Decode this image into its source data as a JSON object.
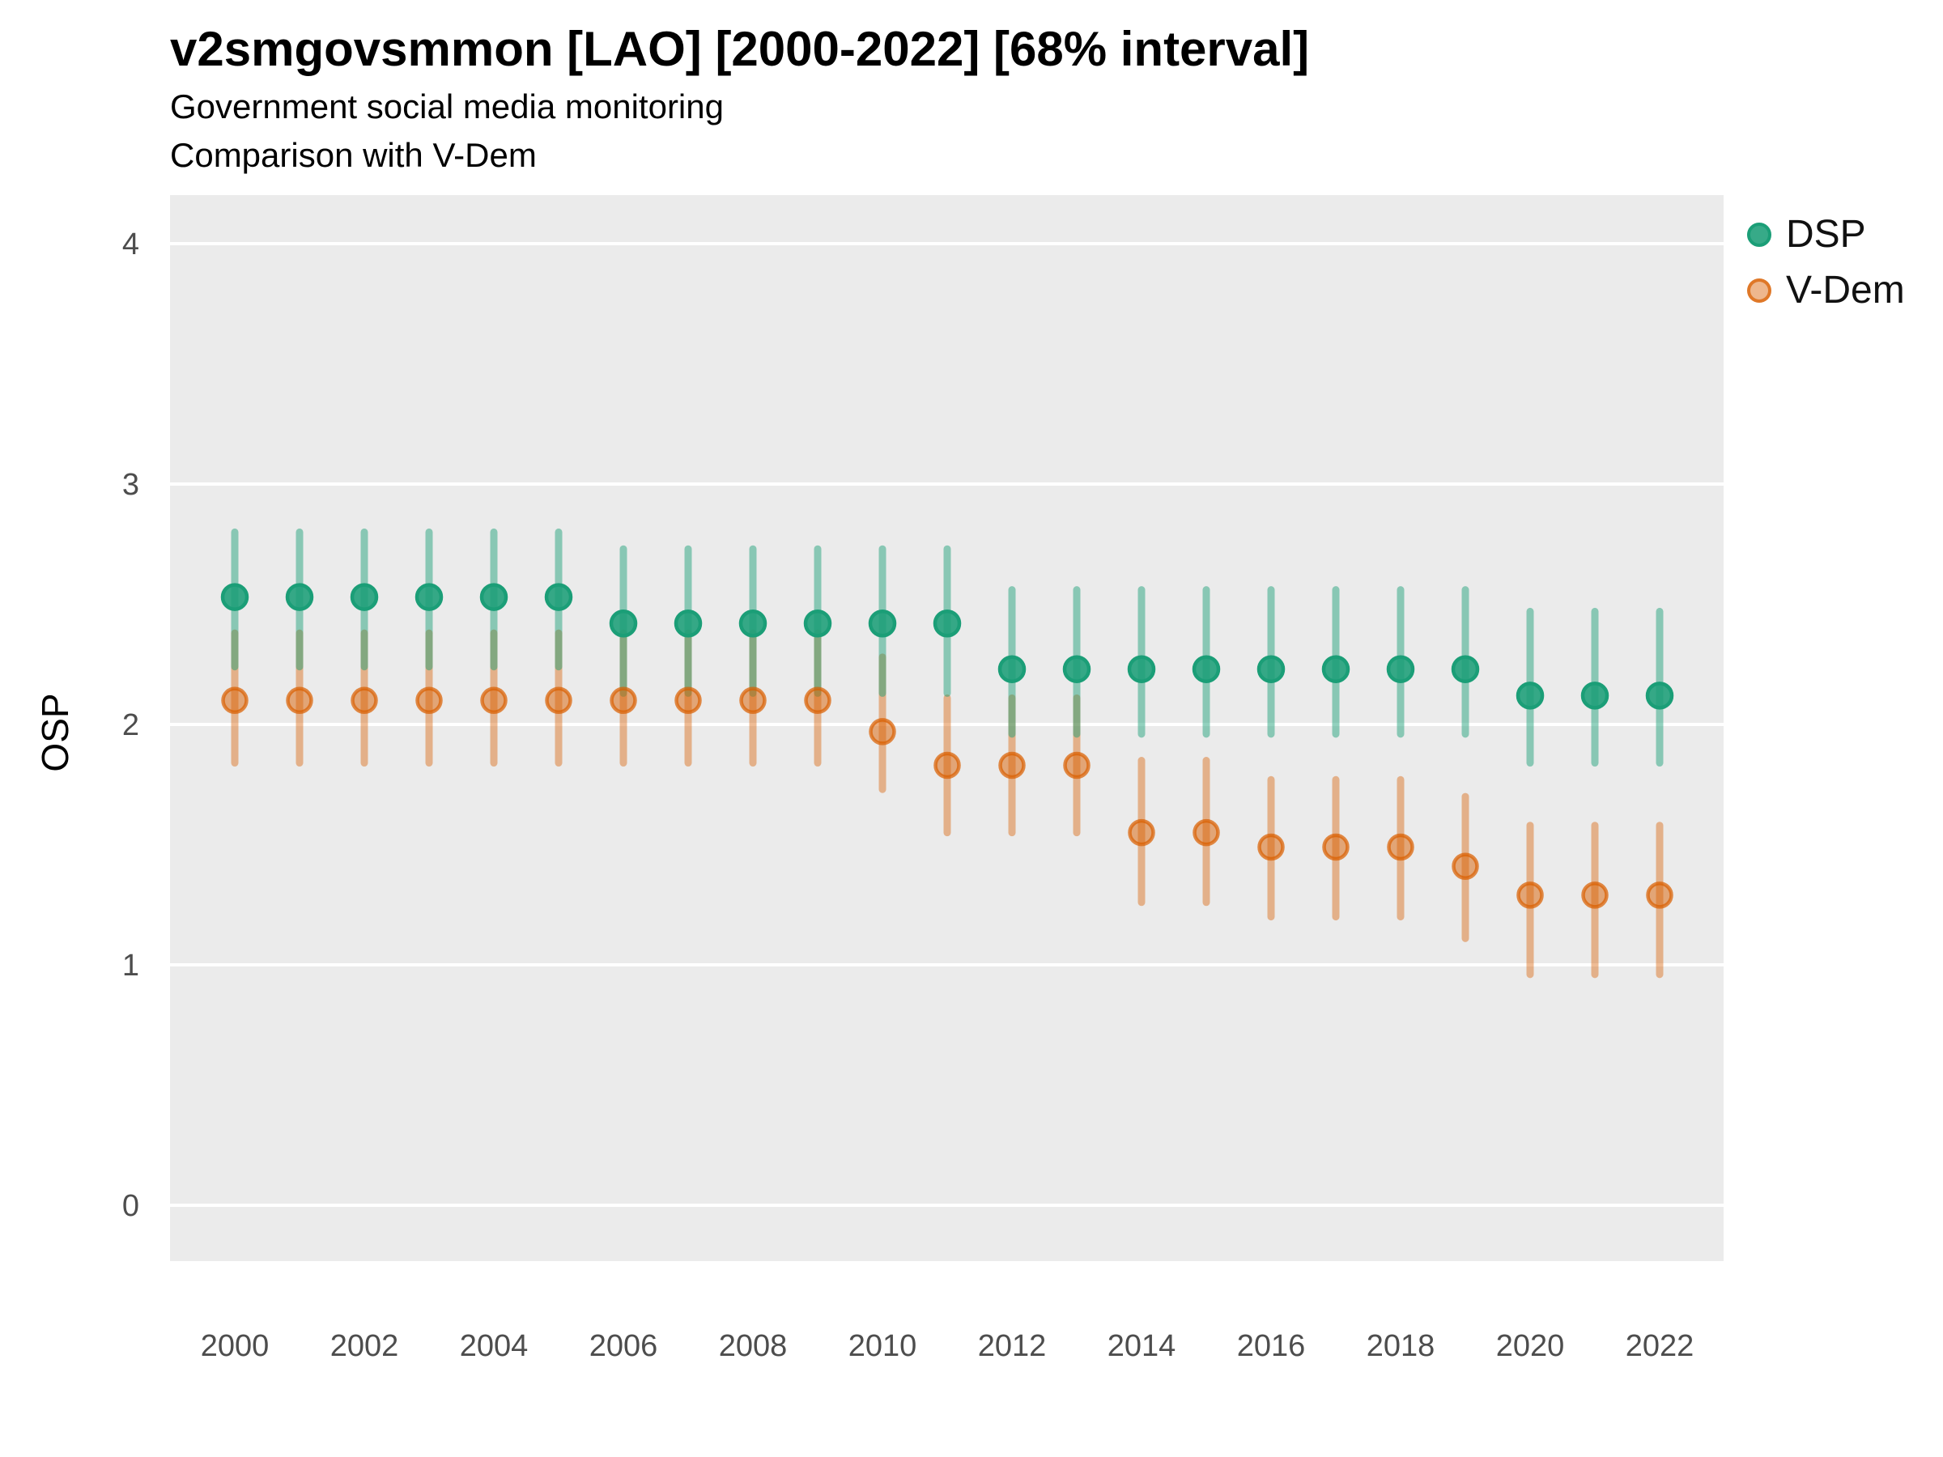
{
  "chart": {
    "title": "v2smgovsmmon [LAO] [2000-2022] [68% interval]",
    "subtitle1": "Government social media monitoring",
    "subtitle2": "Comparison with V-Dem",
    "ylabel": "OSP"
  },
  "legend": {
    "items": [
      {
        "label": "DSP",
        "color": "#1B9E77"
      },
      {
        "label": "V-Dem",
        "color": "#D95F02"
      }
    ]
  },
  "chart_data": {
    "type": "pointrange",
    "title": "v2smgovsmmon [LAO] [2000-2022] [68% interval]",
    "subtitle": [
      "Government social media monitoring",
      "Comparison with V-Dem"
    ],
    "xlabel": "",
    "ylabel": "OSP",
    "interval": "68%",
    "grid": "major-horizontal-white-on-gray",
    "panel_background": "#EBEBEB",
    "legend_position": "right-top",
    "ylim": [
      -0.23,
      4.2
    ],
    "y_ticks": [
      0,
      1,
      2,
      3,
      4
    ],
    "x_tick_labels": [
      "2000",
      "2002",
      "2004",
      "2006",
      "2008",
      "2010",
      "2012",
      "2014",
      "2016",
      "2018",
      "2020",
      "2022"
    ],
    "x": [
      2000,
      2001,
      2002,
      2003,
      2004,
      2005,
      2006,
      2007,
      2008,
      2009,
      2010,
      2011,
      2012,
      2013,
      2014,
      2015,
      2016,
      2017,
      2018,
      2019,
      2020,
      2021,
      2022
    ],
    "series": [
      {
        "name": "DSP",
        "color": "#1B9E77",
        "est": [
          2.53,
          2.53,
          2.53,
          2.53,
          2.53,
          2.53,
          2.42,
          2.42,
          2.42,
          2.42,
          2.42,
          2.42,
          2.23,
          2.23,
          2.23,
          2.23,
          2.23,
          2.23,
          2.23,
          2.23,
          2.12,
          2.12,
          2.12
        ],
        "lo": [
          2.24,
          2.24,
          2.24,
          2.24,
          2.24,
          2.24,
          2.13,
          2.13,
          2.13,
          2.13,
          2.13,
          2.13,
          1.96,
          1.96,
          1.96,
          1.96,
          1.96,
          1.96,
          1.96,
          1.96,
          1.84,
          1.84,
          1.84
        ],
        "hi": [
          2.8,
          2.8,
          2.8,
          2.8,
          2.8,
          2.8,
          2.73,
          2.73,
          2.73,
          2.73,
          2.73,
          2.73,
          2.56,
          2.56,
          2.56,
          2.56,
          2.56,
          2.56,
          2.56,
          2.56,
          2.47,
          2.47,
          2.47
        ]
      },
      {
        "name": "V-Dem",
        "color": "#D95F02",
        "est": [
          2.1,
          2.1,
          2.1,
          2.1,
          2.1,
          2.1,
          2.1,
          2.1,
          2.1,
          2.1,
          1.97,
          1.83,
          1.83,
          1.83,
          1.55,
          1.55,
          1.49,
          1.49,
          1.49,
          1.41,
          1.29,
          1.29,
          1.29
        ],
        "lo": [
          1.84,
          1.84,
          1.84,
          1.84,
          1.84,
          1.84,
          1.84,
          1.84,
          1.84,
          1.84,
          1.73,
          1.55,
          1.55,
          1.55,
          1.26,
          1.26,
          1.2,
          1.2,
          1.2,
          1.11,
          0.96,
          0.96,
          0.96
        ],
        "hi": [
          2.38,
          2.38,
          2.38,
          2.38,
          2.38,
          2.38,
          2.38,
          2.38,
          2.38,
          2.38,
          2.28,
          2.11,
          2.11,
          2.11,
          1.85,
          1.85,
          1.77,
          1.77,
          1.77,
          1.7,
          1.58,
          1.58,
          1.58
        ]
      }
    ]
  }
}
